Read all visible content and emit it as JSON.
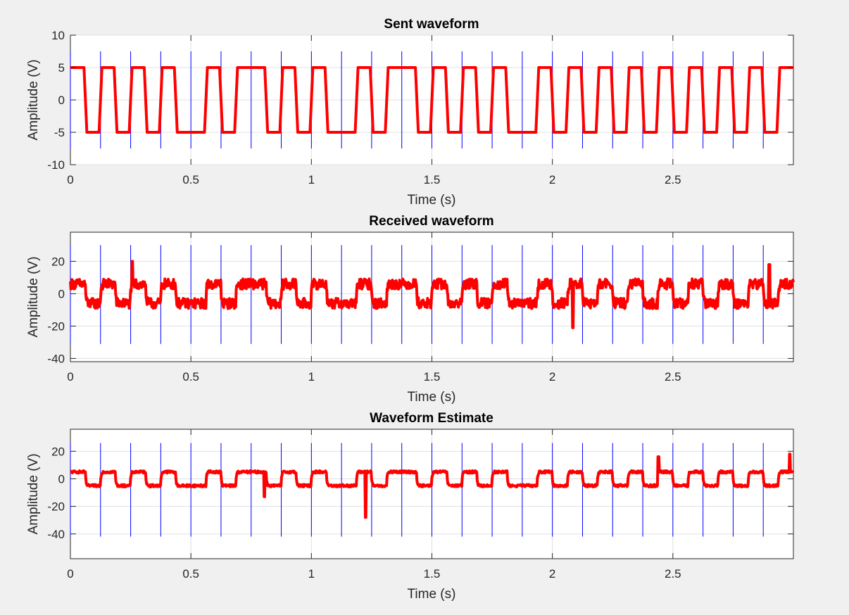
{
  "chart_data": [
    {
      "type": "line",
      "title": "Sent waveform",
      "xlabel": "Time (s)",
      "ylabel": "Amplitude (V)",
      "xlim": [
        0,
        3
      ],
      "ylim": [
        -10,
        10
      ],
      "xticks": [
        0,
        0.5,
        1,
        1.5,
        2,
        2.5
      ],
      "xtick_labels": [
        "0",
        "0.5",
        "1",
        "1.5",
        "2",
        "2.5"
      ],
      "yticks": [
        -10,
        -5,
        0,
        5,
        10
      ],
      "ytick_labels": [
        "-10",
        "-5",
        "0",
        "5",
        "10"
      ],
      "grid": true,
      "marker_lines": {
        "color": "#0000ff",
        "x_start": 0,
        "x_step": 0.125,
        "count": 24,
        "y_range": [
          -7.5,
          7.5
        ]
      },
      "series": [
        {
          "color": "#ff0000",
          "kind": "square",
          "amplitude": 5,
          "bit_period": 0.125,
          "bits": [
            1,
            0,
            1,
            0,
            1,
            0,
            1,
            0,
            0,
            1,
            0,
            1,
            1,
            0,
            1,
            0,
            1,
            0,
            0,
            1,
            0,
            1,
            1,
            0,
            1,
            0,
            1,
            0,
            1,
            0,
            0,
            1,
            0,
            1,
            0,
            1,
            0,
            1,
            0,
            1,
            0,
            1,
            0,
            1,
            0,
            1,
            0,
            1
          ]
        }
      ]
    },
    {
      "type": "line",
      "title": "Received waveform",
      "xlabel": "Time (s)",
      "ylabel": "Amplitude (V)",
      "xlim": [
        0,
        3
      ],
      "ylim": [
        -42,
        38
      ],
      "xticks": [
        0,
        0.5,
        1,
        1.5,
        2,
        2.5
      ],
      "xtick_labels": [
        "0",
        "0.5",
        "1",
        "1.5",
        "2",
        "2.5"
      ],
      "yticks": [
        -40,
        -20,
        0,
        20
      ],
      "ytick_labels": [
        "-40",
        "-20",
        "0",
        "20"
      ],
      "grid": true,
      "marker_lines": {
        "color": "#0000ff",
        "x_start": 0,
        "x_step": 0.125,
        "count": 24,
        "y_range": [
          -31,
          30
        ]
      },
      "series": [
        {
          "color": "#ff0000",
          "kind": "noisy-square",
          "amplitude": 6,
          "noise": 3.2,
          "bit_period": 0.125,
          "bits": [
            1,
            0,
            1,
            0,
            1,
            0,
            1,
            0,
            0,
            1,
            0,
            1,
            1,
            0,
            1,
            0,
            1,
            0,
            0,
            1,
            0,
            1,
            1,
            0,
            1,
            0,
            1,
            0,
            1,
            0,
            0,
            1,
            0,
            1,
            0,
            1,
            0,
            1,
            0,
            1,
            0,
            1,
            0,
            1,
            0,
            1,
            0,
            1
          ],
          "spikes": [
            {
              "x": 0.257,
              "y": 20
            },
            {
              "x": 2.085,
              "y": -21
            },
            {
              "x": 2.9,
              "y": 18
            }
          ]
        }
      ]
    },
    {
      "type": "line",
      "title": "Waveform Estimate",
      "xlabel": "Time (s)",
      "ylabel": "Amplitude (V)",
      "xlim": [
        0,
        3
      ],
      "ylim": [
        -58,
        36
      ],
      "xticks": [
        0,
        0.5,
        1,
        1.5,
        2,
        2.5
      ],
      "xtick_labels": [
        "0",
        "0.5",
        "1",
        "1.5",
        "2",
        "2.5"
      ],
      "yticks": [
        -40,
        -20,
        0,
        20
      ],
      "ytick_labels": [
        "-40",
        "-20",
        "0",
        "20"
      ],
      "grid": true,
      "marker_lines": {
        "color": "#0000ff",
        "x_start": 0,
        "x_step": 0.125,
        "count": 24,
        "y_range": [
          -42,
          26
        ]
      },
      "series": [
        {
          "color": "#ff0000",
          "kind": "noisy-square",
          "amplitude": 5,
          "noise": 0.9,
          "bit_period": 0.125,
          "bits": [
            1,
            0,
            1,
            0,
            1,
            0,
            1,
            0,
            0,
            1,
            0,
            1,
            1,
            0,
            1,
            0,
            1,
            0,
            0,
            1,
            0,
            1,
            1,
            0,
            1,
            0,
            1,
            0,
            1,
            0,
            0,
            1,
            0,
            1,
            0,
            1,
            0,
            1,
            0,
            1,
            0,
            1,
            0,
            1,
            0,
            1,
            0,
            1
          ],
          "spikes": [
            {
              "x": 0.805,
              "y": -13
            },
            {
              "x": 1.225,
              "y": -28
            },
            {
              "x": 2.44,
              "y": 16
            },
            {
              "x": 2.985,
              "y": 18
            }
          ]
        }
      ]
    }
  ]
}
